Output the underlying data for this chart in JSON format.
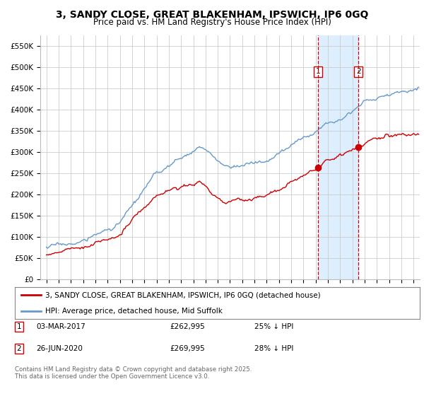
{
  "title": "3, SANDY CLOSE, GREAT BLAKENHAM, IPSWICH, IP6 0GQ",
  "subtitle": "Price paid vs. HM Land Registry's House Price Index (HPI)",
  "legend_line1": "3, SANDY CLOSE, GREAT BLAKENHAM, IPSWICH, IP6 0GQ (detached house)",
  "legend_line2": "HPI: Average price, detached house, Mid Suffolk",
  "footer": "Contains HM Land Registry data © Crown copyright and database right 2025.\nThis data is licensed under the Open Government Licence v3.0.",
  "transactions": [
    {
      "id": 1,
      "date": "03-MAR-2017",
      "price": 262995,
      "pct": "25% ↓ HPI",
      "year": 2017.17
    },
    {
      "id": 2,
      "date": "26-JUN-2020",
      "price": 269995,
      "pct": "28% ↓ HPI",
      "year": 2020.49
    }
  ],
  "ylim": [
    0,
    575000
  ],
  "yticks": [
    0,
    50000,
    100000,
    150000,
    200000,
    250000,
    300000,
    350000,
    400000,
    450000,
    500000,
    550000
  ],
  "ytick_labels": [
    "£0",
    "£50K",
    "£100K",
    "£150K",
    "£200K",
    "£250K",
    "£300K",
    "£350K",
    "£400K",
    "£450K",
    "£500K",
    "£550K"
  ],
  "xlim_start": 1994.5,
  "xlim_end": 2025.5,
  "red_color": "#cc0000",
  "blue_color": "#6699cc",
  "bg_color": "#ffffff",
  "grid_color": "#cccccc",
  "annotation_color": "#cc0000",
  "shading_color": "#ddeeff",
  "title_fontsize": 10,
  "subtitle_fontsize": 8.5
}
